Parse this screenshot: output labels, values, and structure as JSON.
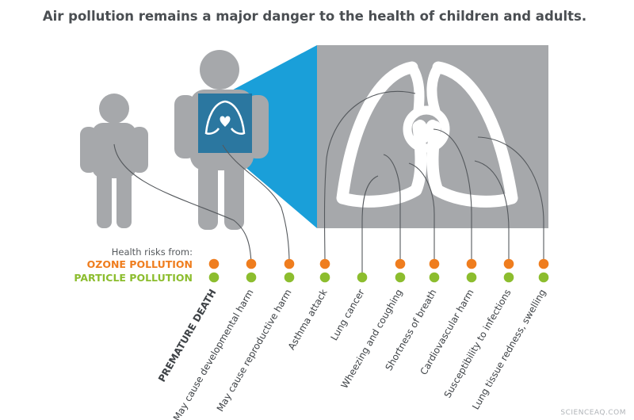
{
  "title": "Air pollution remains a major danger to the health of children and adults.",
  "legend": {
    "label": "Health risks from:",
    "ozone": "OZONE POLLUTION",
    "particle": "PARTICLE POLLUTION"
  },
  "colors": {
    "ozone": "#ef7d1e",
    "particle": "#8cbd2e",
    "figure": "#a6a8ab",
    "zoom": "#1a9fd9",
    "lungs": "#ffffff"
  },
  "figures": {
    "child_icon": "child-silhouette",
    "adult_icon": "adult-silhouette",
    "lungs_icon": "lungs-with-heart"
  },
  "risks": [
    {
      "label": "PREMATURE DEATH",
      "ozone": true,
      "particle": true
    },
    {
      "label": "May cause developmental harm",
      "ozone": true,
      "particle": true
    },
    {
      "label": "May cause reproductive harm",
      "ozone": true,
      "particle": true
    },
    {
      "label": "Asthma attack",
      "ozone": true,
      "particle": true
    },
    {
      "label": "Lung cancer",
      "ozone": false,
      "particle": true
    },
    {
      "label": "Wheezing and coughing",
      "ozone": true,
      "particle": true
    },
    {
      "label": "Shortness of breath",
      "ozone": true,
      "particle": true
    },
    {
      "label": "Cardiovascular harm",
      "ozone": true,
      "particle": true
    },
    {
      "label": "Susceptibility to infections",
      "ozone": true,
      "particle": true
    },
    {
      "label": "Lung tissue redness, swelling",
      "ozone": true,
      "particle": true
    }
  ],
  "watermark": "SCIENCEAQ.COM"
}
